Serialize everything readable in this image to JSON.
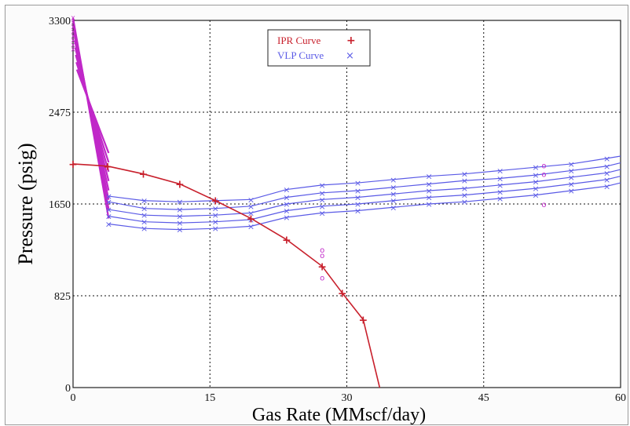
{
  "chart_data": {
    "type": "line",
    "xlabel": "Gas Rate  (MMscf/day)",
    "ylabel": "Pressure  (psig)",
    "xlim": [
      0,
      60
    ],
    "ylim": [
      0,
      3300
    ],
    "xticks": [
      "0",
      "15",
      "30",
      "45",
      "60"
    ],
    "yticks": [
      "0",
      "825",
      "1650",
      "2475",
      "3300"
    ],
    "grid": true,
    "legend_position": "top-center",
    "colors": {
      "ipr": "#c8202c",
      "vlp": "#5a5ae6",
      "sensitivity": "#c028c8",
      "grid": "#111111"
    },
    "series": [
      {
        "name": "IPR Curve",
        "marker": "+",
        "x": [
          0,
          3.8,
          7.7,
          11.7,
          15.6,
          19.5,
          23.4,
          27.3,
          29.5,
          31.8,
          33.6
        ],
        "y": [
          2010,
          1990,
          1920,
          1830,
          1680,
          1520,
          1330,
          1090,
          850,
          610,
          0
        ]
      },
      {
        "name": "VLP Curve",
        "marker": "x",
        "x": [
          3.9,
          7.8,
          11.7,
          15.6,
          19.5,
          23.4,
          27.3,
          31.2,
          35.1,
          39.0,
          42.9,
          46.8,
          50.7,
          54.6,
          58.5,
          60
        ],
        "lines": [
          [
            1720,
            1680,
            1670,
            1680,
            1690,
            1780,
            1820,
            1840,
            1870,
            1900,
            1920,
            1950,
            1980,
            2010,
            2060,
            2080
          ],
          [
            1670,
            1610,
            1600,
            1610,
            1630,
            1710,
            1750,
            1770,
            1800,
            1830,
            1860,
            1880,
            1910,
            1950,
            1990,
            2020
          ],
          [
            1600,
            1550,
            1540,
            1550,
            1570,
            1650,
            1690,
            1710,
            1740,
            1770,
            1790,
            1820,
            1850,
            1890,
            1930,
            1960
          ],
          [
            1540,
            1490,
            1480,
            1490,
            1510,
            1590,
            1630,
            1650,
            1680,
            1710,
            1730,
            1760,
            1790,
            1830,
            1870,
            1900
          ],
          [
            1470,
            1430,
            1420,
            1430,
            1450,
            1530,
            1570,
            1590,
            1620,
            1650,
            1670,
            1700,
            1730,
            1770,
            1810,
            1840
          ]
        ]
      }
    ]
  }
}
